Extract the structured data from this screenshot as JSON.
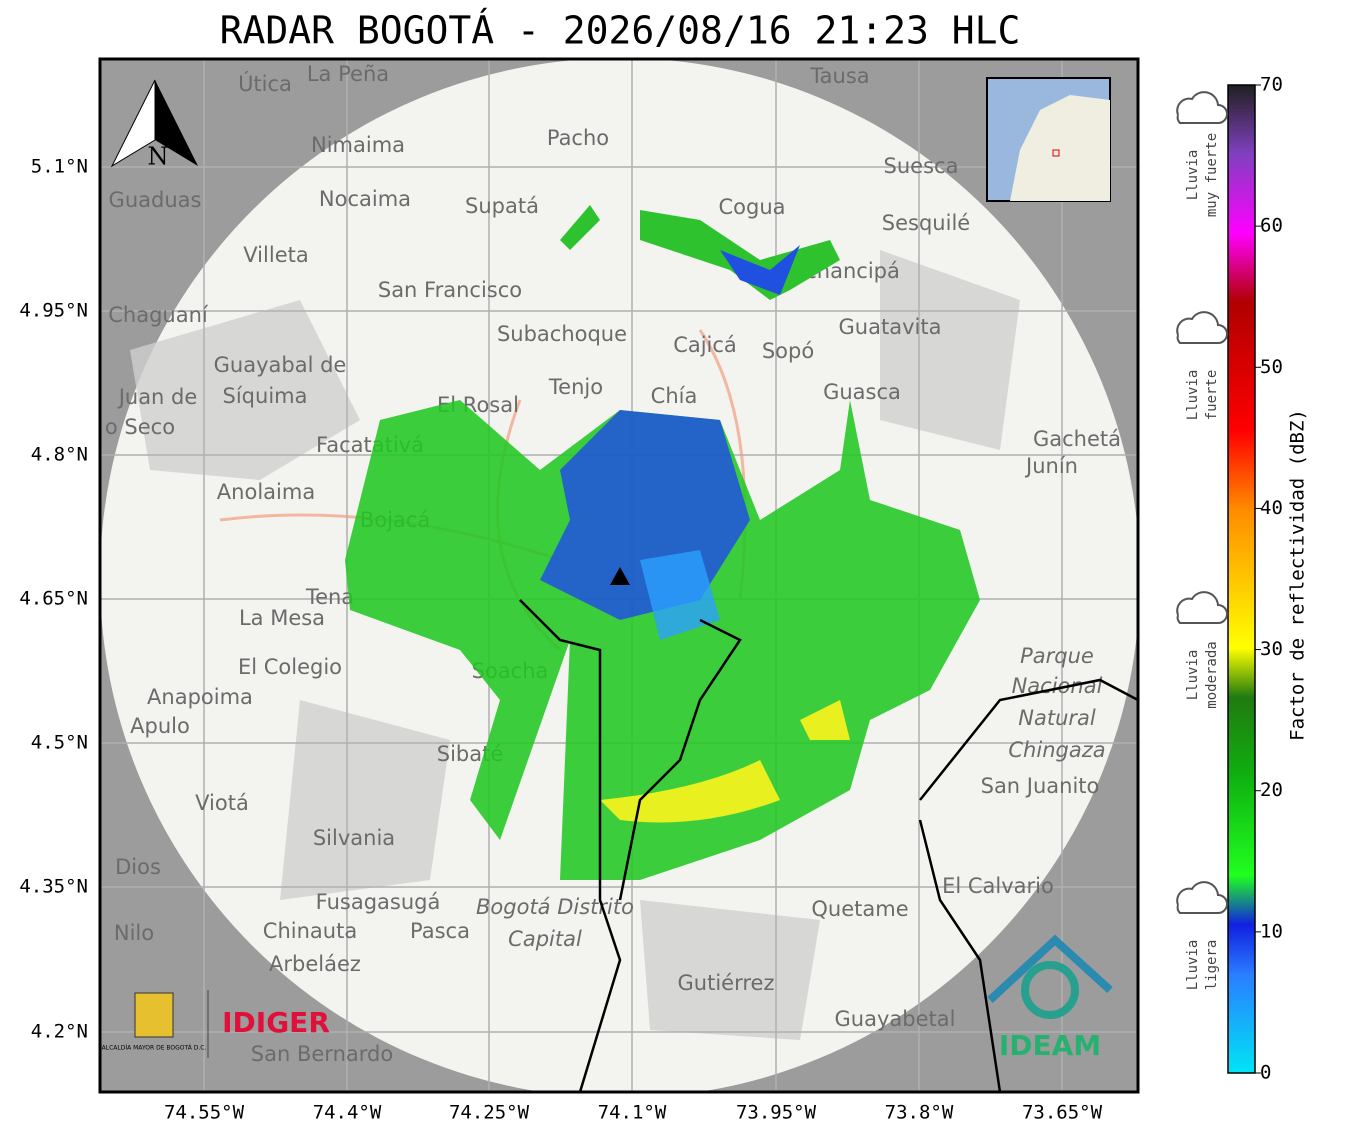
{
  "header": {
    "title": "RADAR BOGOTÁ - 2026/08/16 21:23 HLC"
  },
  "axes": {
    "lat_labels": [
      "5.1°N",
      "4.95°N",
      "4.8°N",
      "4.65°N",
      "4.5°N",
      "4.35°N",
      "4.2°N"
    ],
    "lon_labels": [
      "74.55°W",
      "74.4°W",
      "74.25°W",
      "74.1°W",
      "73.95°W",
      "73.8°W",
      "73.65°W"
    ]
  },
  "map": {
    "north": "N",
    "places": [
      "La Peña",
      "Útica",
      "Tausa",
      "Nimaima",
      "Pacho",
      "Suesca",
      "Guaduas",
      "Nocaima",
      "Supatá",
      "Cogua",
      "Sesquilé",
      "Villeta",
      "Gachancipá",
      "San Francisco",
      "Chaguaní",
      "Subachoque",
      "Guatavita",
      "Cajicá",
      "Sopó",
      "Guayabal de",
      "Síquima",
      "Tenjo",
      "Chía",
      "Guasca",
      "Juan de",
      "o Seco",
      "El Rosal",
      "Gachetá",
      "Junín",
      "Facatativá",
      "Anolaima",
      "Bojacá",
      "Tena",
      "La Mesa",
      "El Colegio",
      "Soacha",
      "Anapoima",
      "Apulo",
      "Sibaté",
      "San Juanito",
      "Viotá",
      "Silvania",
      "Dios",
      "El Calvario",
      "Fusagasugá",
      "Quetame",
      "Nilo",
      "Chinauta",
      "Pasca",
      "Arbeláez",
      "Gutiérrez",
      "Guayabetal",
      "San Bernardo"
    ],
    "italic_places": [
      "Parque",
      "Nacional",
      "Natural",
      "Chingaza",
      "Bogotá Distrito",
      "Capital"
    ]
  },
  "logos": {
    "alcaldia": "ALCALDÍA MAYOR DE BOGOTÁ D.C.",
    "idiger": "IDIGER",
    "ideam": "IDEAM"
  },
  "colorbar": {
    "range": [
      0,
      70
    ],
    "ticks": [
      0,
      10,
      20,
      30,
      40,
      50,
      60,
      70
    ],
    "label": "Factor de reflectividad (dBZ)",
    "levels": [
      [
        "Lluvia",
        "muy fuerte"
      ],
      [
        "Lluvia",
        "fuerte"
      ],
      [
        "Lluvia",
        "moderada"
      ],
      [
        "Lluvia",
        "ligera"
      ]
    ]
  }
}
